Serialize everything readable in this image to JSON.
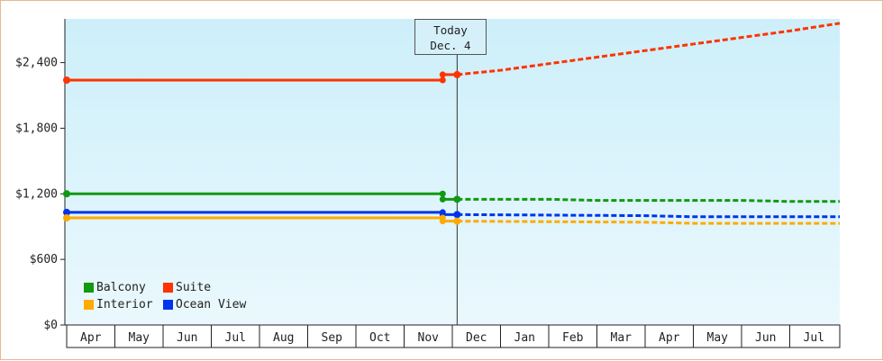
{
  "chart_data": {
    "type": "line",
    "ylim": [
      0,
      2800
    ],
    "y_ticks": [
      {
        "value": 0,
        "label": "$0"
      },
      {
        "value": 600,
        "label": "$600"
      },
      {
        "value": 1200,
        "label": "$1,200"
      },
      {
        "value": 1800,
        "label": "$1,800"
      },
      {
        "value": 2400,
        "label": "$2,400"
      }
    ],
    "months": [
      "Apr",
      "May",
      "Jun",
      "Jul",
      "Aug",
      "Sep",
      "Oct",
      "Nov",
      "Dec",
      "Jan",
      "Feb",
      "Mar",
      "Apr",
      "May",
      "Jun",
      "Jul"
    ],
    "today_label": [
      "Today",
      "Dec. 4"
    ],
    "today_index": 8.1,
    "series": [
      {
        "name": "Suite",
        "color": "#ff3300",
        "history": [
          [
            0,
            2240
          ],
          [
            7.8,
            2240
          ],
          [
            7.8,
            2290
          ],
          [
            8.1,
            2290
          ]
        ],
        "forecast": [
          [
            8.1,
            2290
          ],
          [
            9,
            2330
          ],
          [
            10,
            2390
          ],
          [
            11,
            2450
          ],
          [
            12,
            2510
          ],
          [
            13,
            2570
          ],
          [
            14,
            2630
          ],
          [
            15,
            2690
          ],
          [
            16.2,
            2760
          ]
        ]
      },
      {
        "name": "Balcony",
        "color": "#119911",
        "history": [
          [
            0,
            1200
          ],
          [
            7.8,
            1200
          ],
          [
            7.8,
            1150
          ],
          [
            8.1,
            1150
          ]
        ],
        "forecast": [
          [
            8.1,
            1150
          ],
          [
            10,
            1150
          ],
          [
            11,
            1140
          ],
          [
            14,
            1140
          ],
          [
            15,
            1130
          ],
          [
            16.2,
            1130
          ]
        ]
      },
      {
        "name": "Ocean View",
        "color": "#0033ee",
        "history": [
          [
            0,
            1030
          ],
          [
            7.8,
            1030
          ],
          [
            7.8,
            1010
          ],
          [
            8.1,
            1010
          ]
        ],
        "forecast": [
          [
            8.1,
            1010
          ],
          [
            12,
            1000
          ],
          [
            13,
            990
          ],
          [
            16.2,
            990
          ]
        ]
      },
      {
        "name": "Interior",
        "color": "#ffaa00",
        "history": [
          [
            0,
            980
          ],
          [
            7.8,
            980
          ],
          [
            7.8,
            950
          ],
          [
            8.1,
            950
          ]
        ],
        "forecast": [
          [
            8.1,
            950
          ],
          [
            12,
            940
          ],
          [
            13,
            930
          ],
          [
            16.2,
            930
          ]
        ]
      }
    ],
    "legend": [
      {
        "name": "Balcony",
        "color": "#119911"
      },
      {
        "name": "Suite",
        "color": "#ff3300"
      },
      {
        "name": "Interior",
        "color": "#ffaa00"
      },
      {
        "name": "Ocean View",
        "color": "#0033ee"
      }
    ],
    "background_gradient": [
      "#cdeffa",
      "#eaf8fd"
    ]
  }
}
